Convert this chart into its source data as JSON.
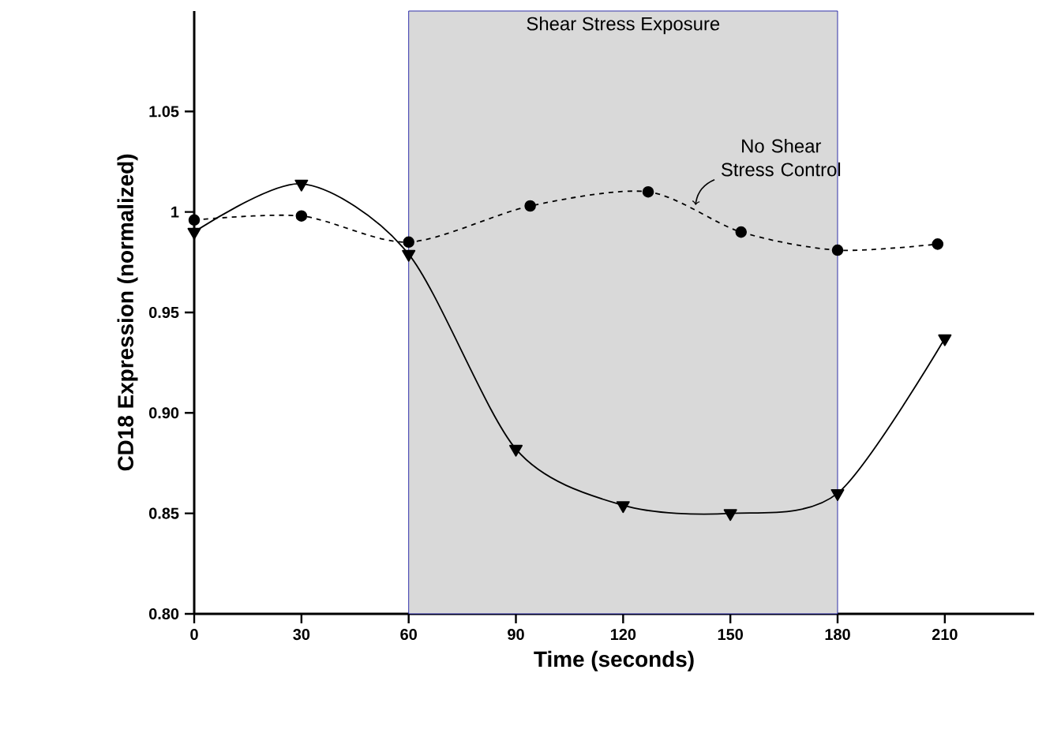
{
  "chart_data": {
    "type": "line",
    "xlabel": "Time (seconds)",
    "ylabel": "CD18 Expression (normalized)",
    "xlim": [
      0,
      235
    ],
    "xticks": [
      0,
      30,
      60,
      90,
      120,
      150,
      180,
      210
    ],
    "ylim": [
      0.8,
      1.1
    ],
    "yticks": [
      {
        "value": 0.8,
        "label": "0.80"
      },
      0.85,
      {
        "value": 0.9,
        "label": "0.90"
      },
      0.95,
      1,
      1.05
    ],
    "series": [
      {
        "color": "#000000",
        "marker": "triangle",
        "line_style": "solid",
        "x": [
          0,
          30,
          60,
          90,
          120,
          150,
          180,
          210
        ],
        "values": [
          0.99,
          1.014,
          0.979,
          0.882,
          0.854,
          0.85,
          0.86,
          0.937
        ]
      },
      {
        "color": "#000000",
        "marker": "circle",
        "line_style": "dashed",
        "x": [
          0,
          30,
          60,
          94,
          127,
          153,
          180,
          208
        ],
        "values": [
          0.996,
          0.998,
          0.985,
          1.003,
          1.01,
          0.99,
          0.981,
          0.984
        ]
      }
    ],
    "bands": [
      {
        "axis": "x",
        "from": 60,
        "to": 180,
        "label": "Shear Stress Exposure",
        "color": "#d9d9d9"
      }
    ],
    "annotations": [
      {
        "text": "No Shear Stress Control",
        "x": 140,
        "y": 1.003
      }
    ],
    "grid": false
  }
}
